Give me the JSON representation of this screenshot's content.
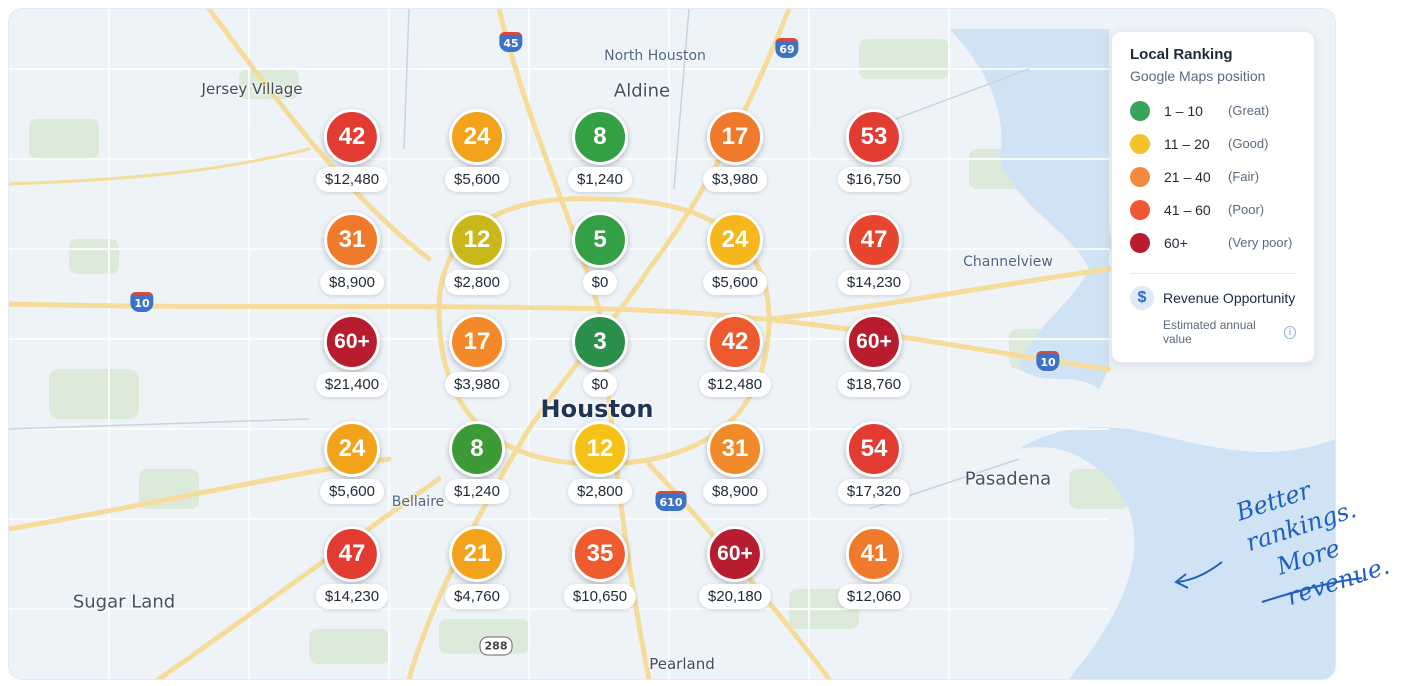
{
  "map": {
    "city_label": "Houston",
    "places": [
      {
        "name": "North Houston",
        "cls": "blue"
      },
      {
        "name": "Aldine",
        "cls": "med"
      },
      {
        "name": "Jersey Village",
        "cls": ""
      },
      {
        "name": "Channelview",
        "cls": "blue"
      },
      {
        "name": "Bellaire",
        "cls": "blue"
      },
      {
        "name": "Pasadena",
        "cls": "med"
      },
      {
        "name": "Sugar Land",
        "cls": "med"
      },
      {
        "name": "Pearland",
        "cls": ""
      }
    ],
    "highways": [
      {
        "label": "45",
        "type": "interstate"
      },
      {
        "label": "69",
        "type": "interstate"
      },
      {
        "label": "10",
        "type": "interstate"
      },
      {
        "label": "10",
        "type": "interstate"
      },
      {
        "label": "610",
        "type": "interstate"
      },
      {
        "label": "288",
        "type": "state"
      }
    ]
  },
  "grid": [
    {
      "rank": "42",
      "revenue": "$12,480",
      "color": "#e23b32"
    },
    {
      "rank": "24",
      "revenue": "$5,600",
      "color": "#f3a21b"
    },
    {
      "rank": "8",
      "revenue": "$1,240",
      "color": "#34a046"
    },
    {
      "rank": "17",
      "revenue": "$3,980",
      "color": "#f07a2c"
    },
    {
      "rank": "53",
      "revenue": "$16,750",
      "color": "#e23b32"
    },
    {
      "rank": "31",
      "revenue": "$8,900",
      "color": "#f07a2c"
    },
    {
      "rank": "12",
      "revenue": "$2,800",
      "color": "#c8b81a"
    },
    {
      "rank": "5",
      "revenue": "$0",
      "color": "#34a046"
    },
    {
      "rank": "24",
      "revenue": "$5,600",
      "color": "#f5b71c"
    },
    {
      "rank": "47",
      "revenue": "$14,230",
      "color": "#e8452f"
    },
    {
      "rank": "60+",
      "revenue": "$21,400",
      "color": "#b71d2e"
    },
    {
      "rank": "17",
      "revenue": "$3,980",
      "color": "#f4892a"
    },
    {
      "rank": "3",
      "revenue": "$0",
      "color": "#2a8f4a"
    },
    {
      "rank": "42",
      "revenue": "$12,480",
      "color": "#ec5a2e"
    },
    {
      "rank": "60+",
      "revenue": "$18,760",
      "color": "#b71d2e"
    },
    {
      "rank": "24",
      "revenue": "$5,600",
      "color": "#f3a21b"
    },
    {
      "rank": "8",
      "revenue": "$1,240",
      "color": "#3c9a37"
    },
    {
      "rank": "12",
      "revenue": "$2,800",
      "color": "#f5c318"
    },
    {
      "rank": "31",
      "revenue": "$8,900",
      "color": "#f08a2a"
    },
    {
      "rank": "54",
      "revenue": "$17,320",
      "color": "#e23b32"
    },
    {
      "rank": "47",
      "revenue": "$14,230",
      "color": "#e23b32"
    },
    {
      "rank": "21",
      "revenue": "$4,760",
      "color": "#f3a21b"
    },
    {
      "rank": "35",
      "revenue": "$10,650",
      "color": "#ef5a2f"
    },
    {
      "rank": "60+",
      "revenue": "$20,180",
      "color": "#b71d2e"
    },
    {
      "rank": "41",
      "revenue": "$12,060",
      "color": "#f07a2c"
    }
  ],
  "legend": {
    "title": "Local Ranking",
    "subtitle": "Google Maps position",
    "items": [
      {
        "range": "1 – 10",
        "label": "(Great)",
        "color": "#3aa35b"
      },
      {
        "range": "11 – 20",
        "label": "(Good)",
        "color": "#f6c22a"
      },
      {
        "range": "21 – 40",
        "label": "(Fair)",
        "color": "#f28a3c"
      },
      {
        "range": "41 – 60",
        "label": "(Poor)",
        "color": "#ef5636"
      },
      {
        "range": "60+",
        "label": "(Very poor)",
        "color": "#b71d2e"
      }
    ],
    "revenue_title": "Revenue Opportunity",
    "revenue_subtitle": "Estimated annual value",
    "dollar_symbol": "$",
    "info_symbol": "i"
  },
  "tagline": {
    "line1": "Better rankings.",
    "line2": "More revenue."
  }
}
